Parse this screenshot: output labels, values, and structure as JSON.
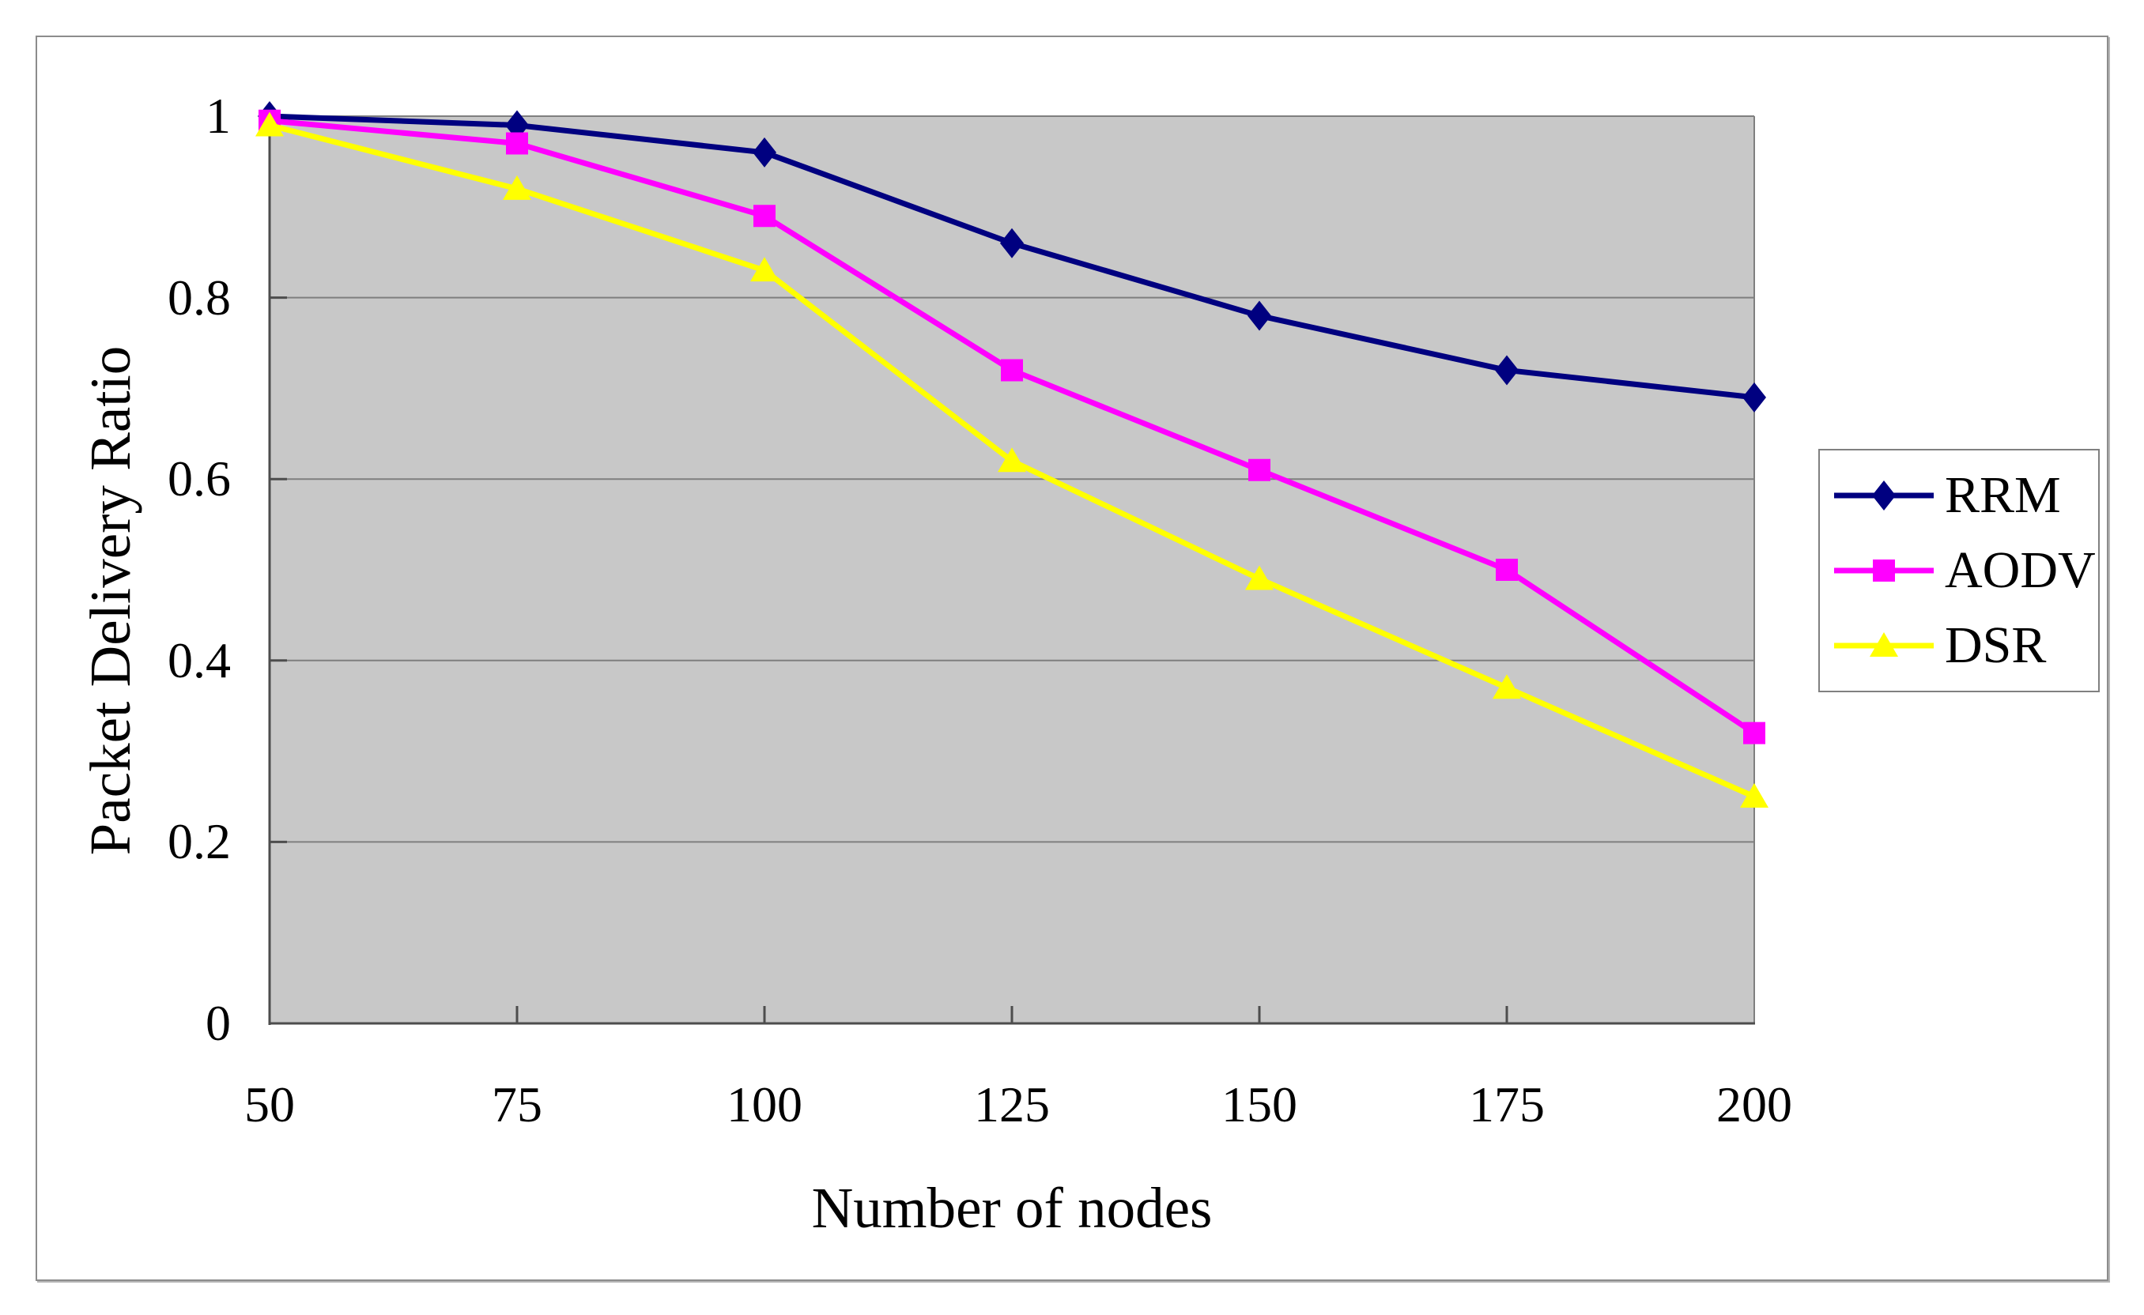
{
  "chart_data": {
    "type": "line",
    "title": "",
    "xlabel": "Number of nodes",
    "ylabel": "Packet Delivery Ratio",
    "x": [
      50,
      75,
      100,
      125,
      150,
      175,
      200
    ],
    "x_tick_labels": [
      "50",
      "75",
      "100",
      "125",
      "150",
      "175",
      "200"
    ],
    "y_ticks": [
      0,
      0.2,
      0.4,
      0.6,
      0.8,
      1
    ],
    "y_tick_labels": [
      "0",
      "0.2",
      "0.4",
      "0.6",
      "0.8",
      "1"
    ],
    "xlim": [
      50,
      200
    ],
    "ylim": [
      0,
      1
    ],
    "grid": "horizontal",
    "legend_position": "right-outside",
    "series": [
      {
        "name": "RRM",
        "color": "#000080",
        "marker": "diamond",
        "values": [
          1.0,
          0.99,
          0.96,
          0.86,
          0.78,
          0.72,
          0.69
        ]
      },
      {
        "name": "AODV",
        "color": "#FF00FF",
        "marker": "square",
        "values": [
          0.995,
          0.97,
          0.89,
          0.72,
          0.61,
          0.5,
          0.32
        ]
      },
      {
        "name": "DSR",
        "color": "#FFFF00",
        "marker": "triangle",
        "values": [
          0.99,
          0.92,
          0.83,
          0.62,
          0.49,
          0.37,
          0.25
        ]
      }
    ]
  },
  "colors": {
    "plot_background": "#C8C8C8",
    "gridline": "#7f7f7f",
    "axis_line": "#4d4d4d",
    "legend_border": "#808080",
    "figure_border": "#8c8c8c",
    "text": "#000000"
  }
}
